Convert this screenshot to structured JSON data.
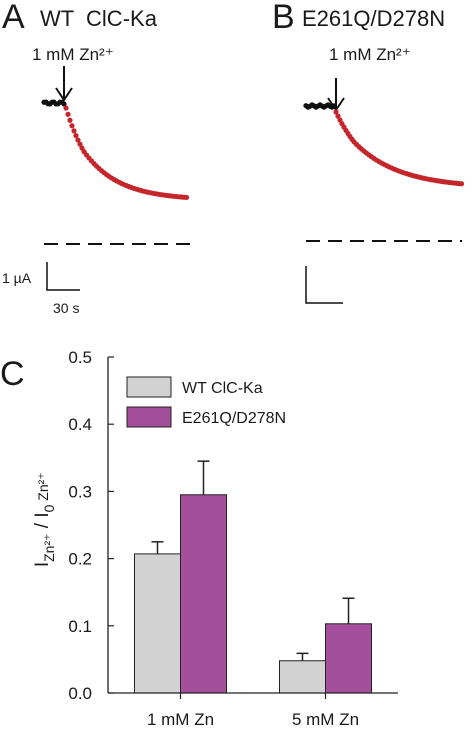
{
  "panels": {
    "a": {
      "letter": "A",
      "title": "WT  ClC-Ka",
      "annotation": "1 mM Zn²⁺",
      "scale_current": "1 µA",
      "scale_time": "30 s"
    },
    "b": {
      "letter": "B",
      "title": "E261Q/D278N",
      "annotation": "1 mM Zn²⁺"
    },
    "c": {
      "letter": "C",
      "ylabel_main": "I",
      "ylabel_sub1": "Zn²⁺",
      "ylabel_mid": " / I",
      "ylabel_sub2": "0",
      "ylabel_tail": " Zn²⁺"
    }
  },
  "colors": {
    "trace_baseline": "#111111",
    "trace_zinc": "#c4262b",
    "wt_bar": "#d2d2d2",
    "mutant_bar": "#a34f9c"
  },
  "chart_data": {
    "type": "bar",
    "categories": [
      "1 mM Zn",
      "5 mM Zn"
    ],
    "series": [
      {
        "name": "WT ClC-Ka",
        "values": [
          0.207,
          0.048
        ],
        "errors": [
          0.018,
          0.011
        ],
        "color": "#d2d2d2"
      },
      {
        "name": "E261Q/D278N",
        "values": [
          0.295,
          0.103
        ],
        "errors": [
          0.05,
          0.038
        ],
        "color": "#a34f9c"
      }
    ],
    "ylim": [
      0.0,
      0.5
    ],
    "yticks": [
      "0.0",
      "0.1",
      "0.2",
      "0.3",
      "0.4",
      "0.5"
    ],
    "legend": "top-left",
    "grid": false
  }
}
